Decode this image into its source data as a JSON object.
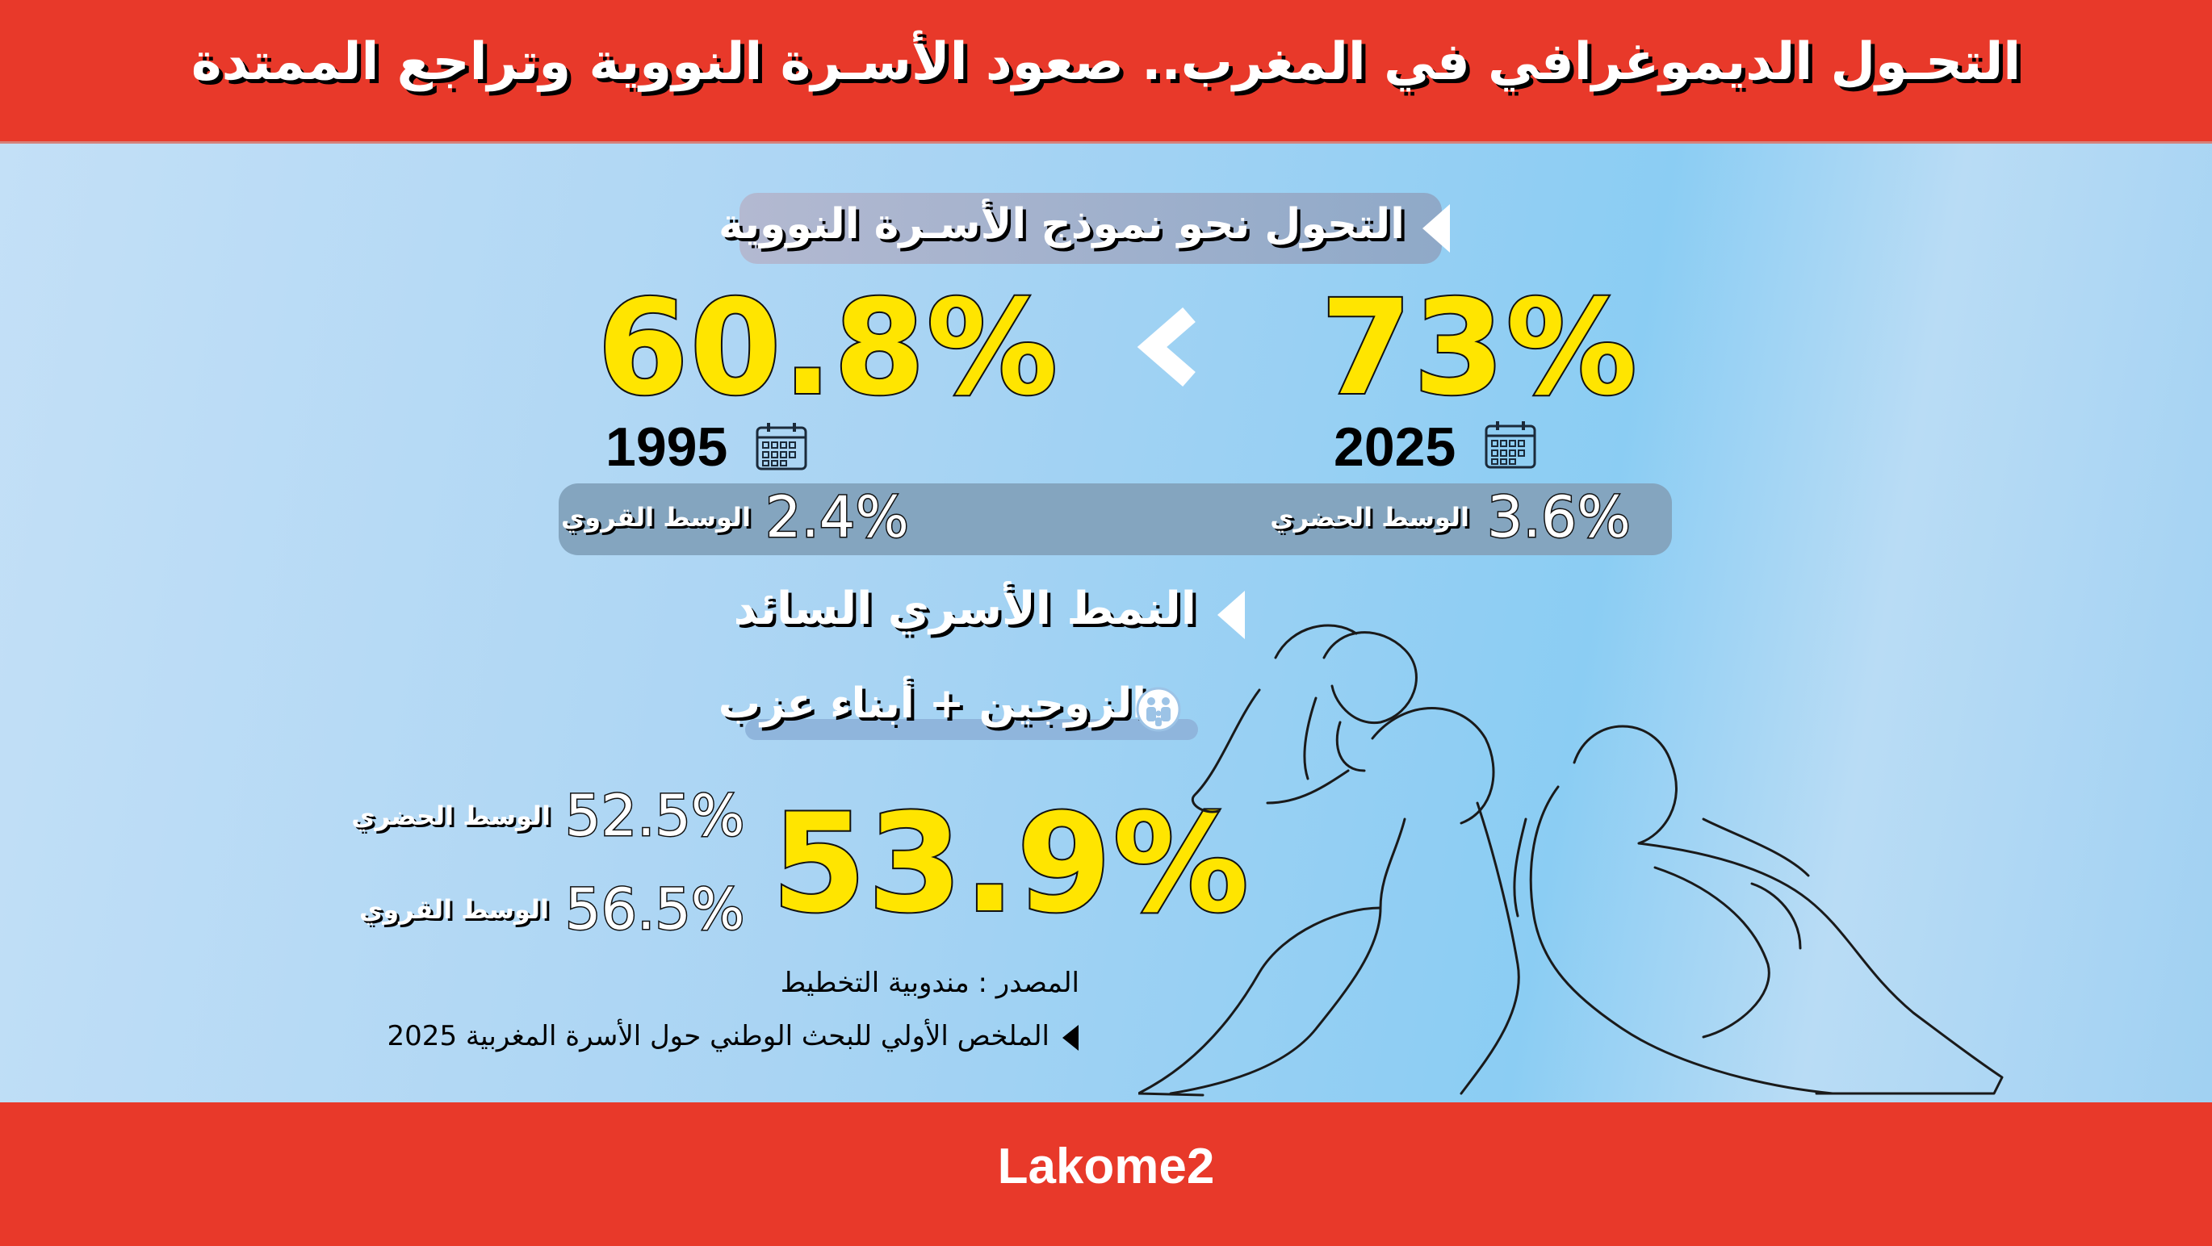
{
  "header": {
    "title": "التحـول الديموغرافي في المغرب.. صعود الأسـرة النووية وتراجع الممتدة"
  },
  "section1": {
    "heading": "التحول نحو نموذج الأسـرة النووية",
    "past": {
      "value": "60.8%",
      "year": "1995"
    },
    "current": {
      "value": "73%",
      "year": "2025"
    },
    "rural": {
      "value": "2.4%",
      "label": "الوسط القروي"
    },
    "urban": {
      "value": "3.6%",
      "label": "الوسط الحضري"
    }
  },
  "section2": {
    "heading": "النمط الأسري السائد",
    "type_label": "الزوجين + أبناء عزب",
    "main_value": "53.9%",
    "urban": {
      "value": "52.5%",
      "label": "الوسط الحضري"
    },
    "rural": {
      "value": "56.5%",
      "label": "الوسط القروي"
    }
  },
  "source": {
    "line1": "المصدر : مندوبية التخطيط",
    "line2": "الملخص الأولي للبحث الوطني حول الأسرة المغربية 2025"
  },
  "footer": {
    "brand": "Lakome2"
  },
  "colors": {
    "red": "#e8392a",
    "yellow": "#ffe500",
    "sky": "#8bcdf3"
  }
}
